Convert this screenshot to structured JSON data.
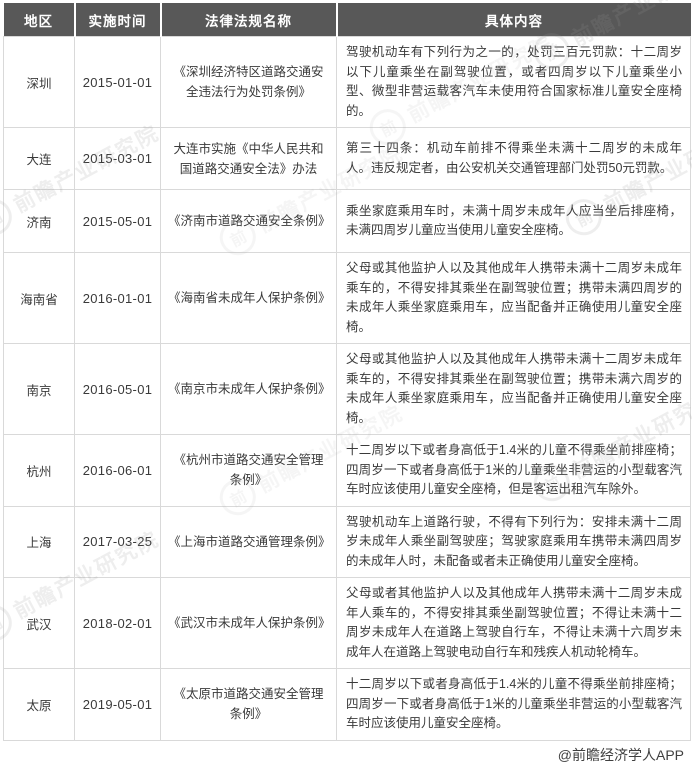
{
  "table": {
    "headers": [
      "地区",
      "实施时间",
      "法律法规名称",
      "具体内容"
    ],
    "rows": [
      {
        "region": "深圳",
        "date": "2015-01-01",
        "law": "《深圳经济特区道路交通安全违法行为处罚条例》",
        "content": "驾驶机动车有下列行为之一的，处罚三百元罚款：十二周岁以下儿童乘坐在副驾驶位置，或者四周岁以下儿童乘坐小型、微型非营运载客汽车未使用符合国家标准儿童安全座椅的。"
      },
      {
        "region": "大连",
        "date": "2015-03-01",
        "law": "大连市实施《中华人民共和国道路交通安全法》办法",
        "content": "第三十四条：机动车前排不得乘坐未满十二周岁的未成年人。违反规定者，由公安机关交通管理部门处罚50元罚款。"
      },
      {
        "region": "济南",
        "date": "2015-05-01",
        "law": "《济南市道路交通安全条例》",
        "content": "乘坐家庭乘用车时，未满十周岁未成年人应当坐后排座椅，未满四周岁儿童应当使用儿童安全座椅。"
      },
      {
        "region": "海南省",
        "date": "2016-01-01",
        "law": "《海南省未成年人保护条例》",
        "content": "父母或其他监护人以及其他成年人携带未满十二周岁未成年乘车的，不得安排其乘坐在副驾驶位置；携带未满四周岁的未成年人乘坐家庭乘用车，应当配备并正确使用儿童安全座椅。"
      },
      {
        "region": "南京",
        "date": "2016-05-01",
        "law": "《南京市未成年人保护条例》",
        "content": "父母或其他监护人以及其他成年人携带未满十二周岁未成年乘车的，不得安排其乘坐在副驾驶位置；携带未满六周岁的未成年人乘坐家庭乘用车，应当配备并正确使用儿童安全座椅。"
      },
      {
        "region": "杭州",
        "date": "2016-06-01",
        "law": "《杭州市道路交通安全管理条例》",
        "content": "十二周岁以下或者身高低于1.4米的儿童不得乘坐前排座椅；四周岁一下或者身高低于1米的儿童乘坐非营运的小型载客汽车时应该使用儿童安全座椅，但是客运出租汽车除外。"
      },
      {
        "region": "上海",
        "date": "2017-03-25",
        "law": "《上海市道路交通管理条例》",
        "content": "驾驶机动车上道路行驶，不得有下列行为：安排未满十二周岁未成年人乘坐副驾驶座；驾驶家庭乘用车携带未满四周岁的未成年人时，未配备或者未正确使用儿童安全座椅。"
      },
      {
        "region": "武汉",
        "date": "2018-02-01",
        "law": "《武汉市未成年人保护条例》",
        "content": "父母或者其他监护人以及其他成年人携带未满十二周岁未成年人乘车的，不得安排其乘坐副驾驶位置；不得让未满十二周岁未成年人在道路上驾驶自行车，不得让未满十六周岁未成年人在道路上驾驶电动自行车和残疾人机动轮椅车。"
      },
      {
        "region": "太原",
        "date": "2019-05-01",
        "law": "《太原市道路交通安全管理条例》",
        "content": "十二周岁以下或者身高低于1.4米的儿童不得乘坐前排座椅；四周岁一下或者身高低于1米的儿童乘坐非营运的小型载客汽车时应该使用儿童安全座椅。"
      }
    ]
  },
  "footer": {
    "credit": "@前瞻经济学人APP"
  },
  "watermark": {
    "text": "前瞻产业研究院",
    "logo_char": "前"
  },
  "colors": {
    "header_bg": "#585858",
    "header_text": "#ffffff",
    "border": "#d9d9d9",
    "body_text": "#3a3a3a",
    "background": "#ffffff"
  }
}
